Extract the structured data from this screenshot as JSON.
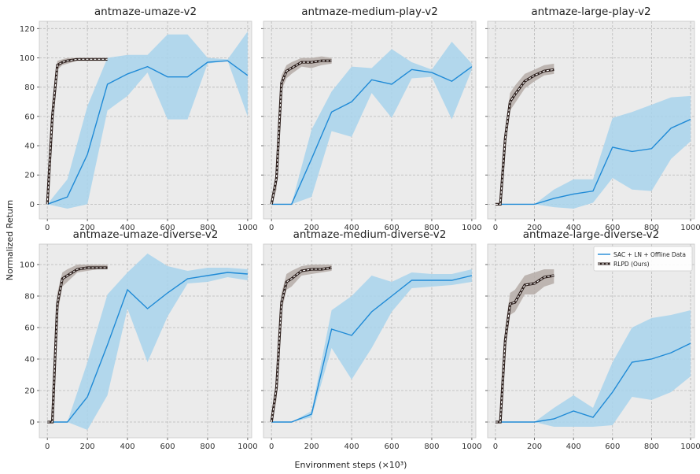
{
  "figure": {
    "ylabel": "Normalized Return",
    "xlabel": "Environment steps (×10³)"
  },
  "legend": {
    "panel": 5,
    "items": [
      "SAC + LN + Offline Data",
      "RLPD (Ours)"
    ]
  },
  "colors": {
    "sac_line": "#1f8ad6",
    "sac_band": "#a8d4ec",
    "rlpd_line": "#2b1d1a",
    "rlpd_band": "#b5aca7",
    "panel_bg": "#ebebeb",
    "grid": "#b8b8b8"
  },
  "chart_data": [
    {
      "type": "line",
      "title": "antmaze-umaze-v2",
      "xlim": [
        -40,
        1020
      ],
      "ylim": [
        -10,
        125
      ],
      "xticks": [
        0,
        200,
        400,
        600,
        800,
        1000
      ],
      "yticks": [
        0,
        20,
        40,
        60,
        80,
        100,
        120
      ],
      "series": [
        {
          "name": "SAC + LN + Offline Data",
          "x": [
            0,
            100,
            200,
            300,
            400,
            500,
            600,
            700,
            800,
            900,
            1000
          ],
          "y": [
            0,
            5,
            34,
            82,
            89,
            94,
            87,
            87,
            97,
            98,
            88
          ],
          "lower": [
            0,
            -3,
            0,
            64,
            74,
            90,
            58,
            58,
            96,
            98,
            60
          ],
          "upper": [
            0,
            17,
            67,
            100,
            102,
            102,
            116,
            116,
            100,
            99,
            118
          ]
        },
        {
          "name": "RLPD (Ours)",
          "x": [
            0,
            25,
            50,
            75,
            100,
            150,
            200,
            250,
            300
          ],
          "y": [
            0,
            60,
            95,
            97,
            98,
            99,
            99,
            99,
            99
          ],
          "lower": [
            0,
            50,
            92,
            95,
            96,
            98,
            98,
            98,
            98
          ],
          "upper": [
            0,
            70,
            98,
            99,
            100,
            100,
            100,
            100,
            100
          ]
        }
      ]
    },
    {
      "type": "line",
      "title": "antmaze-medium-play-v2",
      "xlim": [
        -40,
        1020
      ],
      "ylim": [
        -10,
        125
      ],
      "xticks": [
        0,
        200,
        400,
        600,
        800,
        1000
      ],
      "yticks": [
        0,
        20,
        40,
        60,
        80,
        100,
        120
      ],
      "series": [
        {
          "name": "SAC + LN + Offline Data",
          "x": [
            0,
            100,
            200,
            300,
            400,
            500,
            600,
            700,
            800,
            900,
            1000
          ],
          "y": [
            0,
            0,
            31,
            63,
            70,
            85,
            82,
            92,
            90,
            84,
            94
          ],
          "lower": [
            0,
            0,
            5,
            50,
            46,
            76,
            59,
            86,
            87,
            58,
            92
          ],
          "upper": [
            0,
            0,
            51,
            77,
            94,
            93,
            106,
            97,
            92,
            111,
            96
          ]
        },
        {
          "name": "RLPD (Ours)",
          "x": [
            0,
            25,
            50,
            75,
            100,
            150,
            200,
            250,
            300
          ],
          "y": [
            0,
            18,
            83,
            91,
            93,
            97,
            97,
            98,
            98
          ],
          "lower": [
            0,
            10,
            78,
            86,
            89,
            94,
            93,
            95,
            96
          ],
          "upper": [
            0,
            25,
            88,
            95,
            97,
            100,
            100,
            101,
            100
          ]
        }
      ]
    },
    {
      "type": "line",
      "title": "antmaze-large-play-v2",
      "xlim": [
        -40,
        1020
      ],
      "ylim": [
        -10,
        125
      ],
      "xticks": [
        0,
        200,
        400,
        600,
        800,
        1000
      ],
      "yticks": [
        0,
        20,
        40,
        60,
        80,
        100,
        120
      ],
      "series": [
        {
          "name": "SAC + LN + Offline Data",
          "x": [
            0,
            100,
            200,
            300,
            400,
            500,
            600,
            700,
            800,
            900,
            1000
          ],
          "y": [
            0,
            0,
            0,
            4,
            7,
            9,
            39,
            36,
            38,
            52,
            58
          ],
          "lower": [
            0,
            0,
            0,
            -2,
            -3,
            1,
            18,
            10,
            9,
            31,
            43
          ],
          "upper": [
            0,
            0,
            0,
            10,
            17,
            17,
            59,
            63,
            68,
            73,
            74
          ]
        },
        {
          "name": "RLPD (Ours)",
          "x": [
            0,
            25,
            50,
            75,
            100,
            150,
            200,
            250,
            300
          ],
          "y": [
            0,
            0,
            45,
            70,
            75,
            84,
            88,
            91,
            92
          ],
          "lower": [
            0,
            0,
            38,
            64,
            69,
            79,
            84,
            88,
            89
          ],
          "upper": [
            0,
            0,
            52,
            76,
            81,
            89,
            92,
            95,
            96
          ]
        }
      ]
    },
    {
      "type": "line",
      "title": "antmaze-umaze-diverse-v2",
      "xlim": [
        -40,
        1020
      ],
      "ylim": [
        -10,
        113
      ],
      "xticks": [
        0,
        200,
        400,
        600,
        800,
        1000
      ],
      "yticks": [
        0,
        20,
        40,
        60,
        80,
        100
      ],
      "series": [
        {
          "name": "SAC + LN + Offline Data",
          "x": [
            0,
            100,
            200,
            300,
            400,
            500,
            600,
            700,
            800,
            900,
            1000
          ],
          "y": [
            0,
            0,
            16,
            49,
            84,
            72,
            82,
            91,
            93,
            95,
            94
          ],
          "lower": [
            0,
            0,
            -5,
            17,
            72,
            38,
            67,
            88,
            89,
            92,
            90
          ],
          "upper": [
            0,
            0,
            38,
            81,
            95,
            107,
            99,
            96,
            98,
            98,
            97
          ]
        },
        {
          "name": "RLPD (Ours)",
          "x": [
            0,
            25,
            50,
            75,
            100,
            150,
            200,
            250,
            300
          ],
          "y": [
            0,
            0,
            75,
            91,
            93,
            97,
            98,
            98,
            98
          ],
          "lower": [
            0,
            0,
            68,
            86,
            89,
            95,
            96,
            97,
            97
          ],
          "upper": [
            0,
            0,
            82,
            95,
            97,
            100,
            100,
            100,
            100
          ]
        }
      ]
    },
    {
      "type": "line",
      "title": "antmaze-medium-diverse-v2",
      "xlim": [
        -40,
        1020
      ],
      "ylim": [
        -10,
        113
      ],
      "xticks": [
        0,
        200,
        400,
        600,
        800,
        1000
      ],
      "yticks": [
        0,
        20,
        40,
        60,
        80,
        100
      ],
      "series": [
        {
          "name": "SAC + LN + Offline Data",
          "x": [
            0,
            100,
            200,
            300,
            400,
            500,
            600,
            700,
            800,
            900,
            1000
          ],
          "y": [
            0,
            0,
            5,
            59,
            55,
            70,
            80,
            90,
            90,
            90,
            93
          ],
          "lower": [
            0,
            0,
            3,
            47,
            27,
            47,
            70,
            85,
            86,
            87,
            89
          ],
          "upper": [
            0,
            0,
            7,
            71,
            80,
            93,
            89,
            95,
            94,
            94,
            97
          ]
        },
        {
          "name": "RLPD (Ours)",
          "x": [
            0,
            25,
            50,
            75,
            100,
            150,
            200,
            250,
            300
          ],
          "y": [
            0,
            22,
            76,
            89,
            91,
            96,
            97,
            97,
            98
          ],
          "lower": [
            0,
            14,
            70,
            84,
            86,
            93,
            94,
            95,
            96
          ],
          "upper": [
            0,
            30,
            82,
            94,
            96,
            99,
            100,
            100,
            100
          ]
        }
      ]
    },
    {
      "type": "line",
      "title": "antmaze-large-diverse-v2",
      "xlim": [
        -40,
        1020
      ],
      "ylim": [
        -10,
        113
      ],
      "xticks": [
        0,
        200,
        400,
        600,
        800,
        1000
      ],
      "yticks": [
        0,
        20,
        40,
        60,
        80,
        100
      ],
      "legend": "top-right",
      "series": [
        {
          "name": "SAC + LN + Offline Data",
          "x": [
            0,
            100,
            200,
            300,
            400,
            500,
            600,
            700,
            800,
            900,
            1000
          ],
          "y": [
            0,
            0,
            0,
            2,
            7,
            3,
            19,
            38,
            40,
            44,
            50
          ],
          "lower": [
            0,
            0,
            0,
            -3,
            -3,
            -3,
            -2,
            16,
            14,
            19,
            29
          ],
          "upper": [
            0,
            0,
            0,
            9,
            17,
            9,
            38,
            60,
            66,
            68,
            71
          ]
        },
        {
          "name": "RLPD (Ours)",
          "x": [
            0,
            25,
            50,
            75,
            100,
            150,
            200,
            250,
            300
          ],
          "y": [
            0,
            0,
            52,
            75,
            76,
            87,
            88,
            92,
            93
          ],
          "lower": [
            0,
            0,
            44,
            68,
            70,
            81,
            81,
            86,
            88
          ],
          "upper": [
            0,
            0,
            60,
            82,
            84,
            93,
            95,
            97,
            97
          ]
        }
      ]
    }
  ]
}
